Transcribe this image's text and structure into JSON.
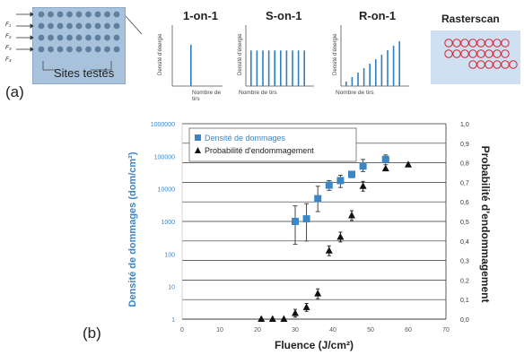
{
  "panel_a_label": "(a)",
  "panel_b_label": "(b)",
  "sample": {
    "fluence_labels": [
      "F₁",
      "F₂",
      "F₃",
      "F₄"
    ],
    "sites_label": "Sites testés"
  },
  "modes": [
    {
      "title": "1-on-1",
      "ylabel": "Densité d'énergie",
      "xlabel": "Nombre de tirs",
      "profile": "single",
      "bars": 1
    },
    {
      "title": "S-on-1",
      "ylabel": "Densité d'énergie",
      "xlabel": "Nombre de tirs",
      "profile": "constant",
      "bars": 10
    },
    {
      "title": "R-on-1",
      "ylabel": "Densité d'énergie",
      "xlabel": "Nombre de tirs",
      "profile": "ramp",
      "bars": 10
    }
  ],
  "rasterscan_title": "Rasterscan",
  "colors": {
    "density": "#3d86c6",
    "probability": "#111111",
    "mini_bars": "#2e7fc1",
    "sample_bg": "#a8c2dc",
    "raster_bg": "#cfe0f3",
    "raster_spots": "#d9202a",
    "grid": "#333333"
  },
  "chart_data": {
    "type": "scatter",
    "xlabel": "Fluence (J/cm²)",
    "ylabel_left": "Densité de dommages (dom/cm²)",
    "ylabel_right": "Probabilité d'endommagement",
    "x_ticks": [
      0,
      10,
      20,
      30,
      40,
      50,
      60,
      70
    ],
    "xlim": [
      0,
      70
    ],
    "y_left_scale": "log",
    "y_left_ticks": [
      "1",
      "10",
      "100",
      "1000",
      "10000",
      "100000",
      "1000000"
    ],
    "ylim_left": [
      1,
      1000000
    ],
    "y_right_ticks": [
      "0,0",
      "0,1",
      "0,2",
      "0,3",
      "0,4",
      "0,5",
      "0,6",
      "0,7",
      "0,8",
      "0,9",
      "1,0"
    ],
    "ylim_right": [
      0,
      1
    ],
    "grid": "horizontal",
    "legend_position": "top-left",
    "series": [
      {
        "name": "Densité de dommages",
        "axis": "left",
        "marker": "square",
        "x": [
          30,
          33,
          36,
          39,
          42,
          45,
          48,
          54
        ],
        "y": [
          1000,
          1200,
          5000,
          13000,
          18000,
          28000,
          50000,
          80000
        ],
        "err_low": [
          200,
          250,
          2000,
          9000,
          11000,
          22000,
          34000,
          55000
        ],
        "err_high": [
          3000,
          3500,
          12000,
          18000,
          26000,
          35000,
          80000,
          110000
        ]
      },
      {
        "name": "Probabilité d'endommagement",
        "axis": "right",
        "marker": "triangle",
        "x": [
          21,
          24,
          27,
          30,
          33,
          36,
          39,
          42,
          45,
          48,
          54,
          60
        ],
        "y": [
          0.0,
          0.0,
          0.0,
          0.03,
          0.06,
          0.13,
          0.35,
          0.42,
          0.53,
          0.68,
          0.77,
          0.79
        ],
        "err": [
          0,
          0,
          0,
          0.02,
          0.02,
          0.025,
          0.025,
          0.025,
          0.025,
          0.025,
          0,
          0
        ]
      }
    ]
  }
}
